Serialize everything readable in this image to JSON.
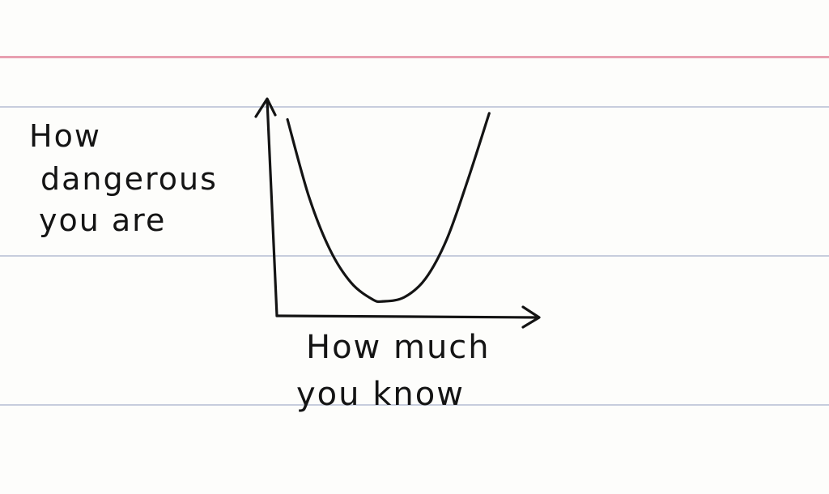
{
  "chart_data": {
    "type": "line",
    "title": "",
    "xlabel": "How much you know",
    "ylabel": "How dangerous you are",
    "xlabel_lines": [
      "How much",
      "you know"
    ],
    "ylabel_lines": [
      "How",
      "dangerous",
      "you are"
    ],
    "grid": false,
    "legend": "none",
    "series": [
      {
        "x": [
          0.05,
          0.15,
          0.25,
          0.35,
          0.45,
          0.5,
          0.6,
          0.7,
          0.8,
          0.9,
          1.0
        ],
        "y": [
          0.95,
          0.58,
          0.32,
          0.16,
          0.08,
          0.07,
          0.09,
          0.18,
          0.37,
          0.66,
          0.98
        ]
      }
    ],
    "xlim": [
      0,
      1.22
    ],
    "ylim": [
      0,
      1.05
    ],
    "colors": {
      "ink": "#141414",
      "margin_line": "#e8a0b0",
      "ruled_line": "#c7cddd",
      "paper": "#fdfdfb"
    }
  }
}
